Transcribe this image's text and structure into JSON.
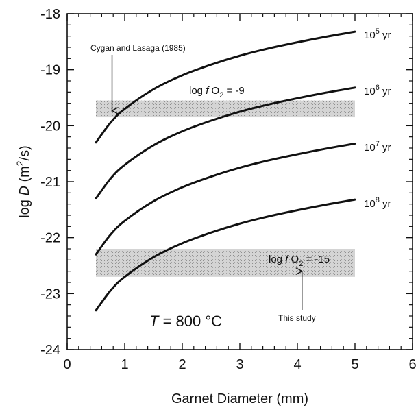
{
  "chart_data": {
    "type": "line",
    "xlabel": "Garnet Diameter  (mm)",
    "ylabel": "log D  (m²/s)",
    "ylabel_parts": {
      "prefix": "log ",
      "var": "D",
      "unit_pre": "  (m",
      "unit_exp": "2",
      "unit_post": "/s)"
    },
    "xlim": [
      0,
      6
    ],
    "ylim": [
      -24,
      -18
    ],
    "xticks": [
      0,
      1,
      2,
      3,
      4,
      5,
      6
    ],
    "yticks": [
      -24,
      -23,
      -22,
      -21,
      -20,
      -19,
      -18
    ],
    "xtick_labels": [
      "0",
      "1",
      "2",
      "3",
      "4",
      "5",
      "6"
    ],
    "ytick_labels": [
      "-24",
      "-23",
      "-22",
      "-21",
      "-20",
      "-19",
      "-18"
    ],
    "grid": false,
    "series": [
      {
        "name": "10⁵ yr",
        "label_base": "10",
        "label_exp": "5",
        "label_unit": " yr",
        "x": [
          0.5,
          0.75,
          1.0,
          1.5,
          2.0,
          2.5,
          3.0,
          3.5,
          4.0,
          4.5,
          5.0
        ],
        "y": [
          -20.3,
          -19.95,
          -19.7,
          -19.35,
          -19.1,
          -18.91,
          -18.75,
          -18.62,
          -18.51,
          -18.41,
          -18.32
        ]
      },
      {
        "name": "10⁶ yr",
        "label_base": "10",
        "label_exp": "6",
        "label_unit": " yr",
        "x": [
          0.5,
          0.75,
          1.0,
          1.5,
          2.0,
          2.5,
          3.0,
          3.5,
          4.0,
          4.5,
          5.0
        ],
        "y": [
          -21.3,
          -20.95,
          -20.7,
          -20.35,
          -20.1,
          -19.91,
          -19.75,
          -19.62,
          -19.51,
          -19.41,
          -19.32
        ]
      },
      {
        "name": "10⁷ yr",
        "label_base": "10",
        "label_exp": "7",
        "label_unit": " yr",
        "x": [
          0.5,
          0.75,
          1.0,
          1.5,
          2.0,
          2.5,
          3.0,
          3.5,
          4.0,
          4.5,
          5.0
        ],
        "y": [
          -22.3,
          -21.95,
          -21.7,
          -21.35,
          -21.1,
          -20.91,
          -20.75,
          -20.62,
          -20.51,
          -20.41,
          -20.32
        ]
      },
      {
        "name": "10⁸ yr",
        "label_base": "10",
        "label_exp": "8",
        "label_unit": " yr",
        "x": [
          0.5,
          0.75,
          1.0,
          1.5,
          2.0,
          2.5,
          3.0,
          3.5,
          4.0,
          4.5,
          5.0
        ],
        "y": [
          -23.3,
          -22.95,
          -22.7,
          -22.35,
          -22.1,
          -21.91,
          -21.75,
          -21.62,
          -21.51,
          -21.41,
          -21.32
        ]
      }
    ],
    "bands": [
      {
        "x": [
          0.5,
          5.0
        ],
        "y": [
          -19.85,
          -19.55
        ],
        "fill": "#c8c8c8"
      },
      {
        "x": [
          0.5,
          5.0
        ],
        "y": [
          -22.7,
          -22.2
        ],
        "fill": "#c8c8c8"
      }
    ],
    "annotations": {
      "cygan": {
        "text": "Cygan and Lasaga (1985)",
        "arrow_to": [
          0.78,
          -19.78
        ]
      },
      "this_study": {
        "text": "This study",
        "arrow_to": [
          4.08,
          -22.55
        ]
      },
      "fo2_high": {
        "prefix": "log ",
        "var": "f",
        "species": "O",
        "sub": "2",
        "suffix": " = -9"
      },
      "fo2_low": {
        "prefix": "log ",
        "var": "f",
        "species": "O",
        "sub": "2",
        "suffix": " = -15"
      },
      "temperature": {
        "var": "T",
        "suffix": " = 800 °C"
      }
    },
    "line_color": "#111111",
    "band_color": "#c8c8c8"
  }
}
